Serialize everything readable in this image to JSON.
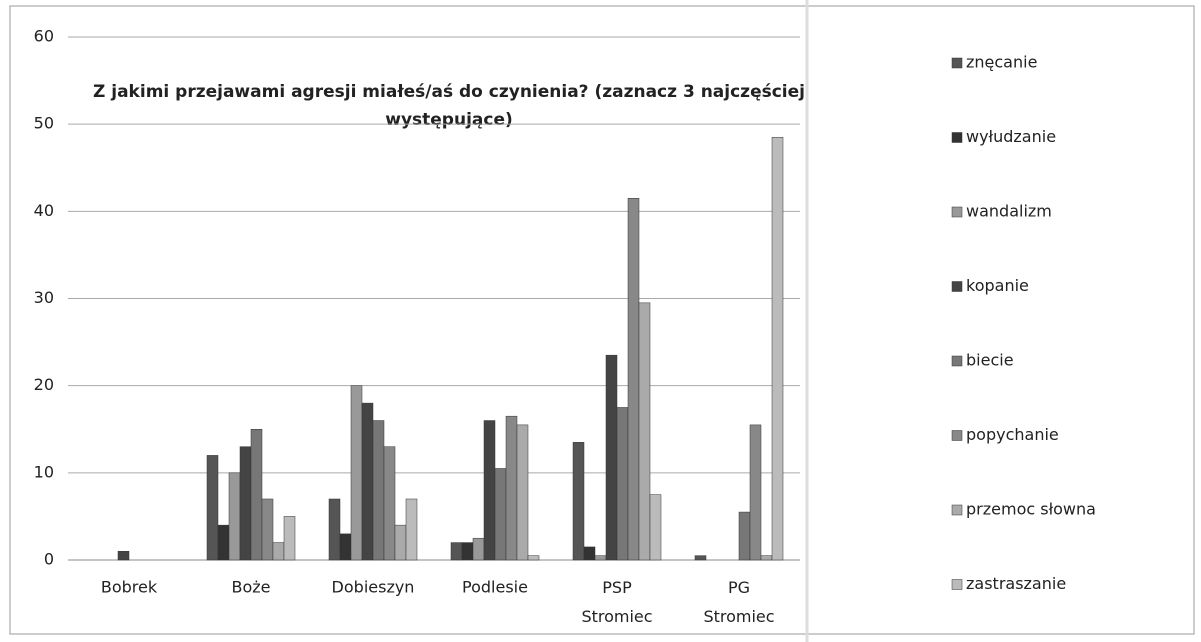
{
  "chart_data": {
    "type": "bar",
    "title_lines": [
      "Z jakimi przejawami agresji miałeś/aś do czynienia? (zaznacz 3 najczęściej",
      "występujące)"
    ],
    "categories": [
      "Bobrek",
      "Boże",
      "Dobieszyn",
      "Podlesie",
      "PSP Stromiec",
      "PG Stromiec"
    ],
    "series": [
      {
        "name": "znęcanie",
        "color": "#555555",
        "values": [
          0,
          12,
          7,
          2,
          13.5,
          0.5
        ]
      },
      {
        "name": "wyłudzanie",
        "color": "#333333",
        "values": [
          0,
          4,
          3,
          2,
          1.5,
          0
        ]
      },
      {
        "name": "wandalizm",
        "color": "#999999",
        "values": [
          0,
          10,
          20,
          2.5,
          0.5,
          0
        ]
      },
      {
        "name": "kopanie",
        "color": "#444444",
        "values": [
          1,
          13,
          18,
          16,
          23.5,
          0
        ]
      },
      {
        "name": "biecie",
        "color": "#777777",
        "values": [
          0,
          15,
          16,
          10.5,
          17.5,
          5.5
        ]
      },
      {
        "name": "popychanie",
        "color": "#888888",
        "values": [
          0,
          7,
          13,
          16.5,
          41.5,
          15.5
        ]
      },
      {
        "name": "przemoc słowna",
        "color": "#aaaaaa",
        "values": [
          0,
          2,
          4,
          15.5,
          29.5,
          0.5
        ]
      },
      {
        "name": "zastraszanie",
        "color": "#bbbbbb",
        "values": [
          0,
          5,
          7,
          0.5,
          7.5,
          48.5
        ]
      }
    ],
    "ylim": [
      0,
      60
    ],
    "yticks": [
      0,
      10,
      20,
      30,
      40,
      50,
      60
    ],
    "grid": true,
    "legend": "right"
  }
}
